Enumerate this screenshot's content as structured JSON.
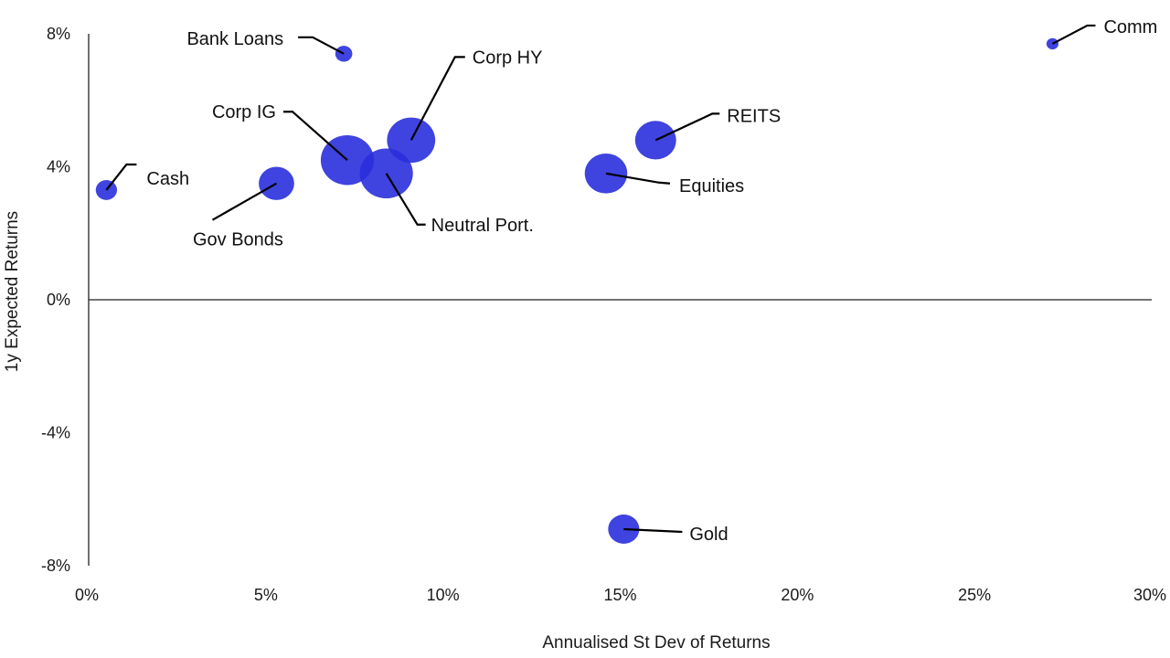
{
  "chart_data": {
    "type": "bubble",
    "xlabel": "Annualised St Dev of Returns",
    "ylabel": "1y Expected Returns",
    "xlim": [
      0,
      30
    ],
    "ylim": [
      -8,
      8
    ],
    "x_ticks": [
      0,
      5,
      10,
      15,
      20,
      25,
      30
    ],
    "x_tick_labels": [
      "0%",
      "5%",
      "10%",
      "15%",
      "20%",
      "25%",
      "30%"
    ],
    "y_ticks": [
      -8,
      -4,
      0,
      4,
      8
    ],
    "y_tick_labels": [
      "-8%",
      "-4%",
      "0%",
      "4%",
      "8%"
    ],
    "bubble_color": "#2a2fdc",
    "points": [
      {
        "label": "Cash",
        "x": 0.5,
        "y": 3.3,
        "size": 0.3
      },
      {
        "label": "Gov Bonds",
        "x": 5.3,
        "y": 3.5,
        "size": 0.5
      },
      {
        "label": "Bank Loans",
        "x": 7.2,
        "y": 7.4,
        "size": 0.24
      },
      {
        "label": "Corp IG",
        "x": 7.3,
        "y": 4.2,
        "size": 0.75
      },
      {
        "label": "Neutral Port.",
        "x": 8.4,
        "y": 3.8,
        "size": 0.75
      },
      {
        "label": "Corp HY",
        "x": 9.1,
        "y": 4.8,
        "size": 0.68
      },
      {
        "label": "Equities",
        "x": 14.6,
        "y": 3.8,
        "size": 0.6
      },
      {
        "label": "REITS",
        "x": 16.0,
        "y": 4.8,
        "size": 0.58
      },
      {
        "label": "Gold",
        "x": 15.1,
        "y": -6.9,
        "size": 0.44
      },
      {
        "label": "Comm",
        "x": 27.2,
        "y": 7.7,
        "size": 0.17
      }
    ]
  }
}
